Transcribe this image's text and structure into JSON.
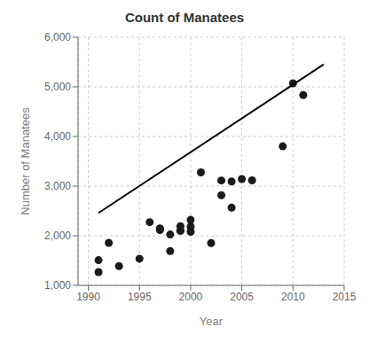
{
  "chart_data": {
    "type": "scatter",
    "title": "Count of Manatees",
    "x_label": "Year",
    "y_label": "Number of Manatees",
    "series": [
      {
        "type": "scatter",
        "color": "#1a1a1a",
        "x": [
          1991,
          1991,
          1992,
          1993,
          1995,
          1996,
          1997,
          1997,
          1998,
          1998,
          1999,
          1999,
          1999,
          2000,
          2000,
          2000,
          2001,
          2002,
          2003,
          2003,
          2004,
          2004,
          2005,
          2006,
          2009,
          2010,
          2011
        ],
        "values": [
          1268,
          1507,
          1856,
          1389,
          1537,
          2274,
          2117,
          2148,
          1690,
          2025,
          2101,
          2101,
          2193,
          2320,
          2081,
          2183,
          3276,
          1853,
          2817,
          3113,
          2568,
          3092,
          3143,
          3116,
          3802,
          5071,
          4834
        ]
      },
      {
        "type": "line",
        "color": "#000000",
        "x": [
          1991,
          2013
        ],
        "values": [
          2460,
          5452
        ]
      }
    ],
    "xlim": [
      1989,
      2015
    ],
    "ylim": [
      1000,
      6000
    ],
    "xticks": [
      1990,
      1995,
      2000,
      2005,
      2010,
      2015
    ],
    "yticks": [
      {
        "value": 1000,
        "label": "1,000"
      },
      {
        "value": 2000,
        "label": "2,000"
      },
      {
        "value": 3000,
        "label": "3,000"
      },
      {
        "value": 4000,
        "label": "4,000"
      },
      {
        "value": 5000,
        "label": "5,000"
      },
      {
        "value": 6000,
        "label": "6,000"
      }
    ],
    "grid": true
  }
}
